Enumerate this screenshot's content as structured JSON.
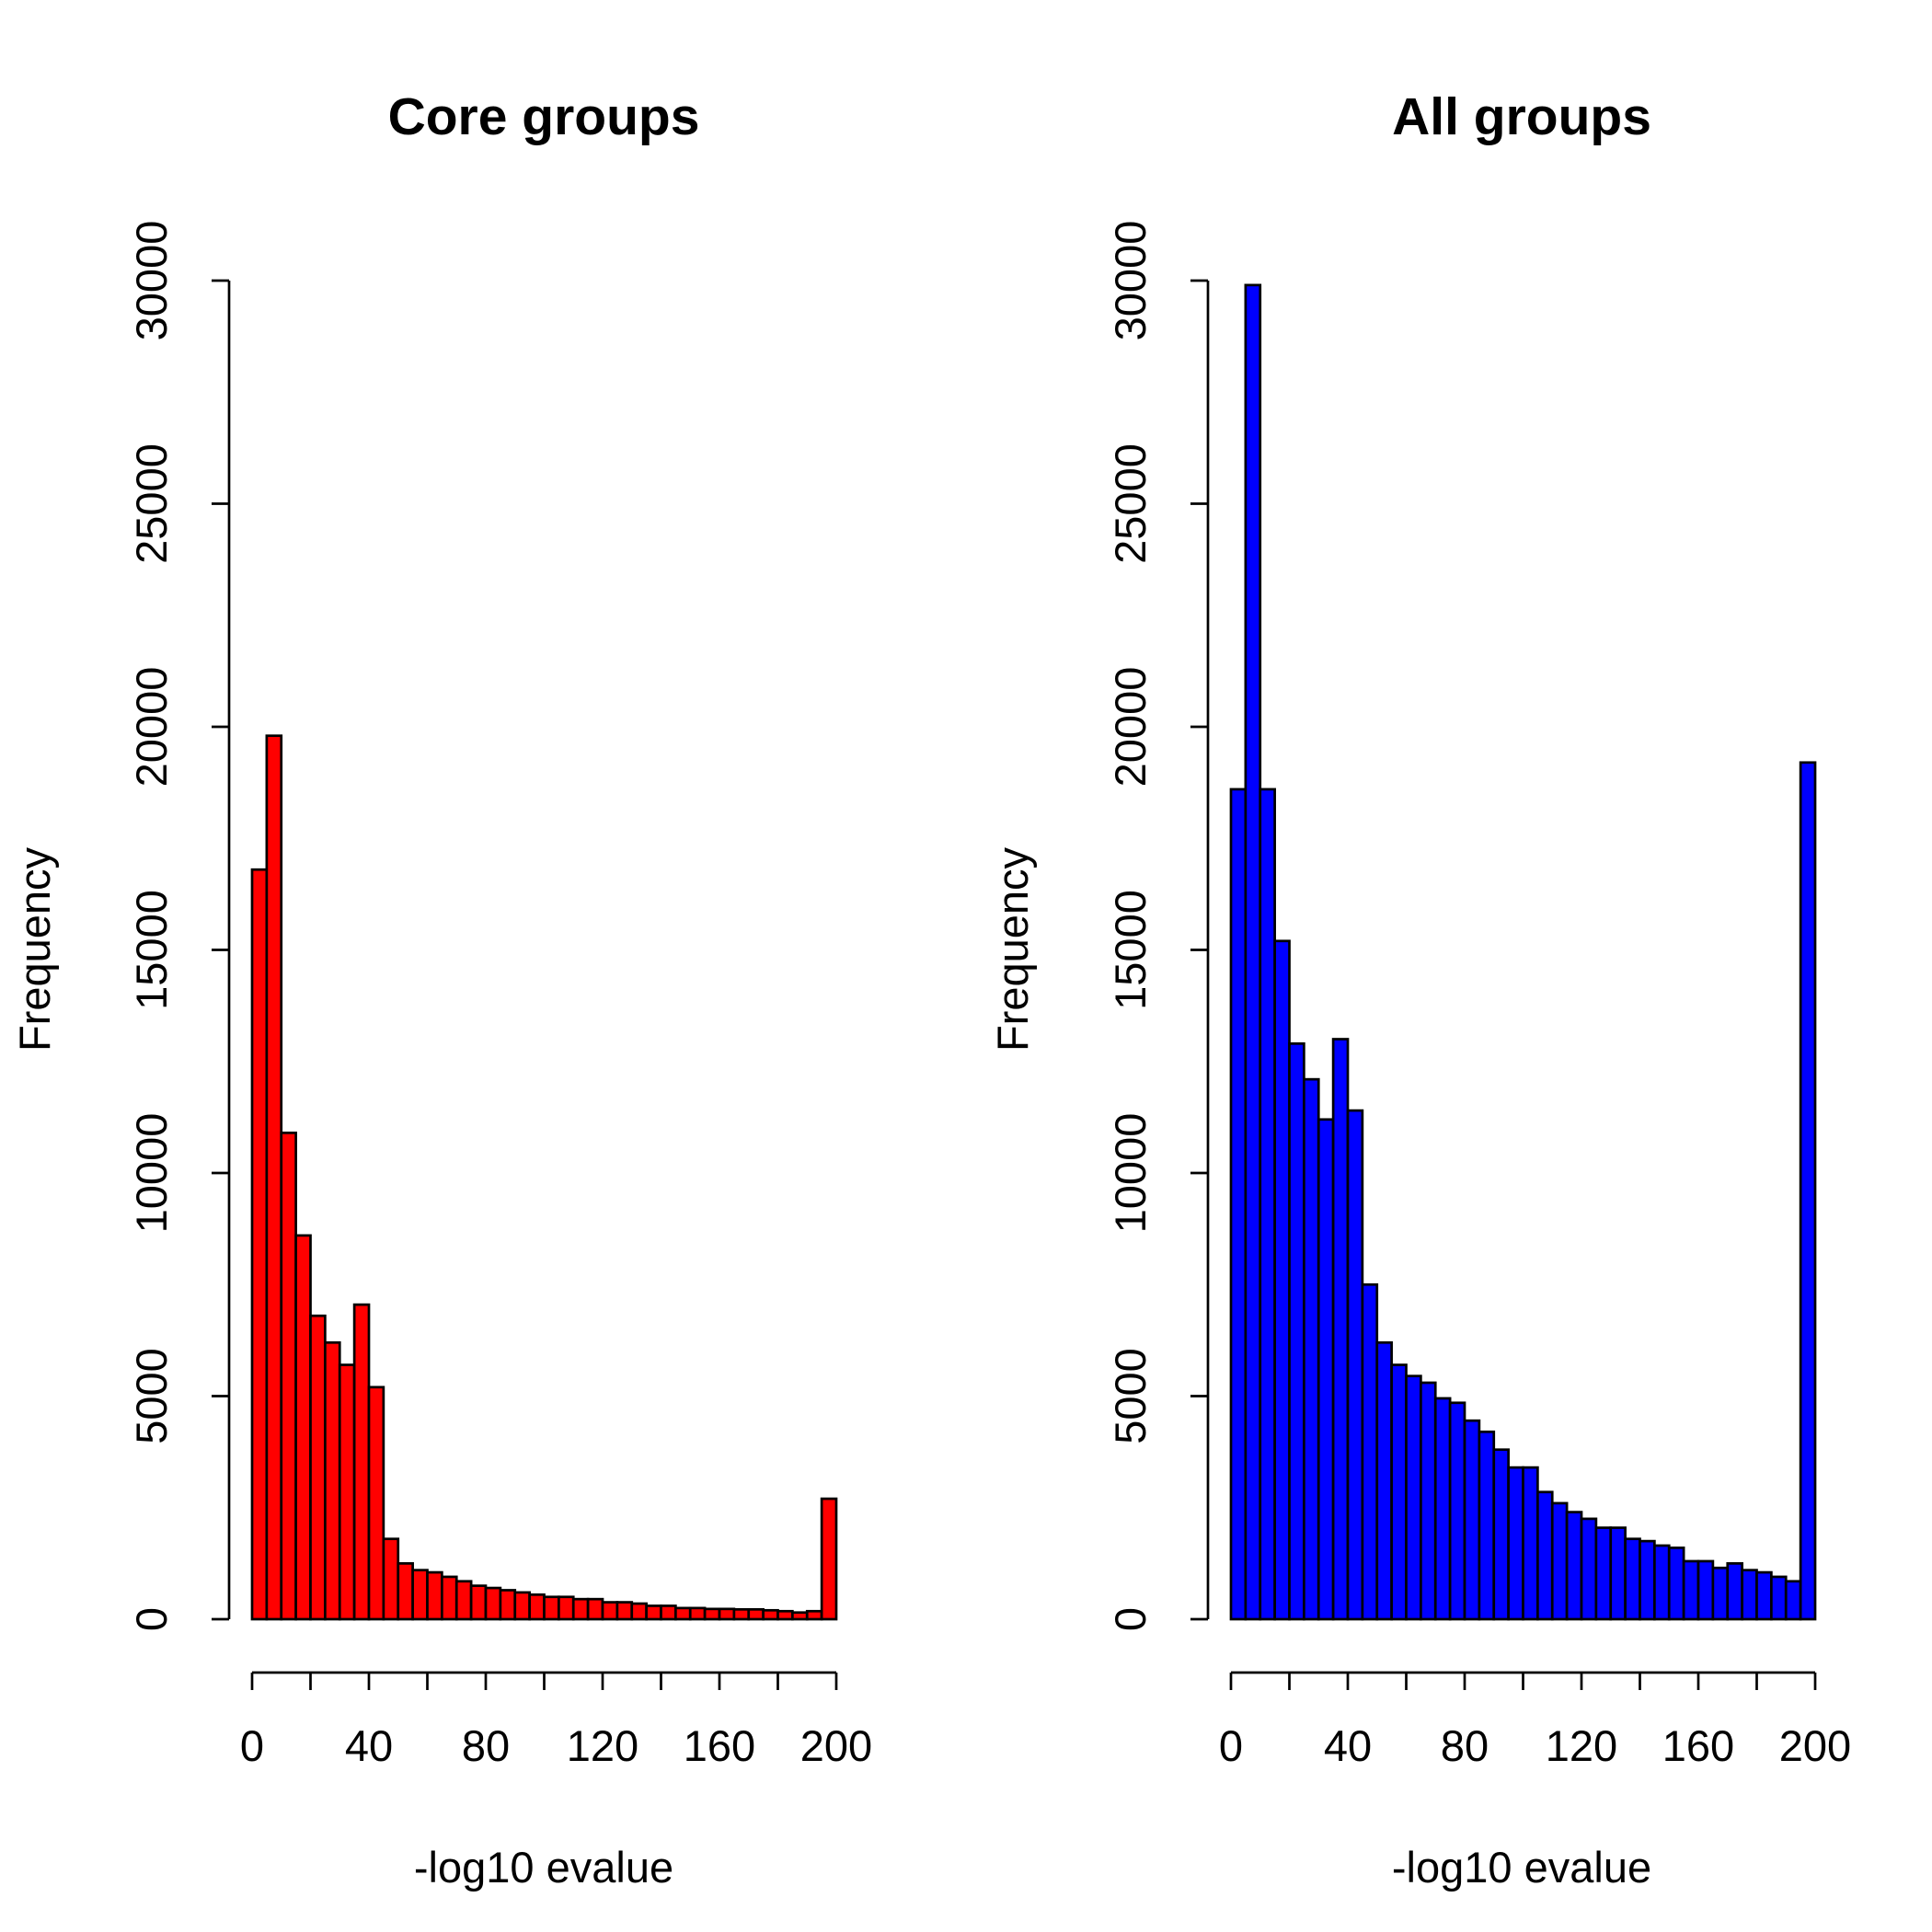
{
  "chart_data": [
    {
      "type": "bar",
      "title": "Core groups",
      "xlabel": "-log10 evalue",
      "ylabel": "Frequency",
      "bar_color": "#FF0000",
      "bin_width": 5,
      "x": [
        0,
        5,
        10,
        15,
        20,
        25,
        30,
        35,
        40,
        45,
        50,
        55,
        60,
        65,
        70,
        75,
        80,
        85,
        90,
        95,
        100,
        105,
        110,
        115,
        120,
        125,
        130,
        135,
        140,
        145,
        150,
        155,
        160,
        165,
        170,
        175,
        180,
        185,
        190,
        195
      ],
      "values": [
        16800,
        19800,
        10900,
        8600,
        6800,
        6200,
        5700,
        7050,
        5200,
        1800,
        1250,
        1100,
        1050,
        950,
        850,
        750,
        700,
        650,
        600,
        550,
        500,
        500,
        450,
        450,
        380,
        380,
        350,
        300,
        300,
        250,
        250,
        230,
        230,
        220,
        220,
        200,
        180,
        150,
        180,
        2700
      ],
      "xlim": [
        0,
        200
      ],
      "ylim": [
        0,
        30000
      ],
      "xticks": [
        "0",
        "40",
        "80",
        "120",
        "160",
        "200"
      ],
      "xtick_values": [
        0,
        40,
        80,
        120,
        160,
        200
      ],
      "xminor_ticks": [
        0,
        20,
        40,
        60,
        80,
        100,
        120,
        140,
        160,
        180,
        200
      ],
      "yticks": [
        "0",
        "5000",
        "10000",
        "15000",
        "20000",
        "25000",
        "30000"
      ],
      "ytick_values": [
        0,
        5000,
        10000,
        15000,
        20000,
        25000,
        30000
      ],
      "grid": false
    },
    {
      "type": "bar",
      "title": "All groups",
      "xlabel": "-log10 evalue",
      "ylabel": "Frequency",
      "bar_color": "#0000FF",
      "bin_width": 5,
      "x": [
        0,
        5,
        10,
        15,
        20,
        25,
        30,
        35,
        40,
        45,
        50,
        55,
        60,
        65,
        70,
        75,
        80,
        85,
        90,
        95,
        100,
        105,
        110,
        115,
        120,
        125,
        130,
        135,
        140,
        145,
        150,
        155,
        160,
        165,
        170,
        175,
        180,
        185,
        190,
        195
      ],
      "values": [
        18600,
        29900,
        18600,
        15200,
        12900,
        12100,
        11200,
        13000,
        11400,
        7500,
        6200,
        5700,
        5450,
        5300,
        4950,
        4850,
        4450,
        4200,
        3800,
        3400,
        3400,
        2850,
        2600,
        2400,
        2250,
        2050,
        2050,
        1800,
        1750,
        1650,
        1600,
        1300,
        1300,
        1150,
        1250,
        1100,
        1050,
        950,
        850,
        19200
      ],
      "xlim": [
        0,
        200
      ],
      "ylim": [
        0,
        30000
      ],
      "xticks": [
        "0",
        "40",
        "80",
        "120",
        "160",
        "200"
      ],
      "xtick_values": [
        0,
        40,
        80,
        120,
        160,
        200
      ],
      "xminor_ticks": [
        0,
        20,
        40,
        60,
        80,
        100,
        120,
        140,
        160,
        180,
        200
      ],
      "yticks": [
        "0",
        "5000",
        "10000",
        "15000",
        "20000",
        "25000",
        "30000"
      ],
      "ytick_values": [
        0,
        5000,
        10000,
        15000,
        20000,
        25000,
        30000
      ],
      "grid": false
    }
  ]
}
